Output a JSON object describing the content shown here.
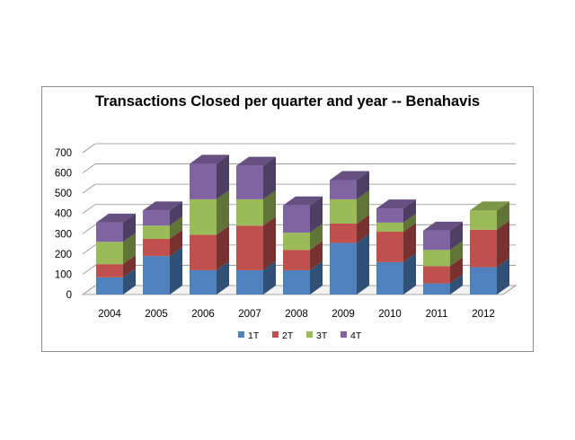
{
  "chart_data": {
    "type": "bar",
    "stacked": true,
    "three_d": true,
    "title": "Transactions Closed per quarter and year -- Benahavis",
    "xlabel": "",
    "ylabel": "",
    "categories": [
      "2004",
      "2005",
      "2006",
      "2007",
      "2008",
      "2009",
      "2010",
      "2011",
      "2012"
    ],
    "series": [
      {
        "name": "1T",
        "color": "#4f81bd",
        "values": [
          85,
          190,
          120,
          120,
          120,
          255,
          160,
          55,
          135
        ]
      },
      {
        "name": "2T",
        "color": "#c0504d",
        "values": [
          65,
          85,
          175,
          220,
          100,
          95,
          150,
          85,
          185
        ]
      },
      {
        "name": "3T",
        "color": "#9bbb59",
        "values": [
          110,
          65,
          175,
          130,
          85,
          120,
          45,
          80,
          95
        ]
      },
      {
        "name": "4T",
        "color": "#8064a2",
        "values": [
          95,
          75,
          175,
          165,
          135,
          95,
          70,
          95,
          0
        ]
      }
    ],
    "yticks": [
      "0",
      "100",
      "200",
      "300",
      "400",
      "500",
      "600",
      "700"
    ],
    "ylim": [
      0,
      700
    ],
    "grid": true,
    "legend_position": "bottom"
  }
}
